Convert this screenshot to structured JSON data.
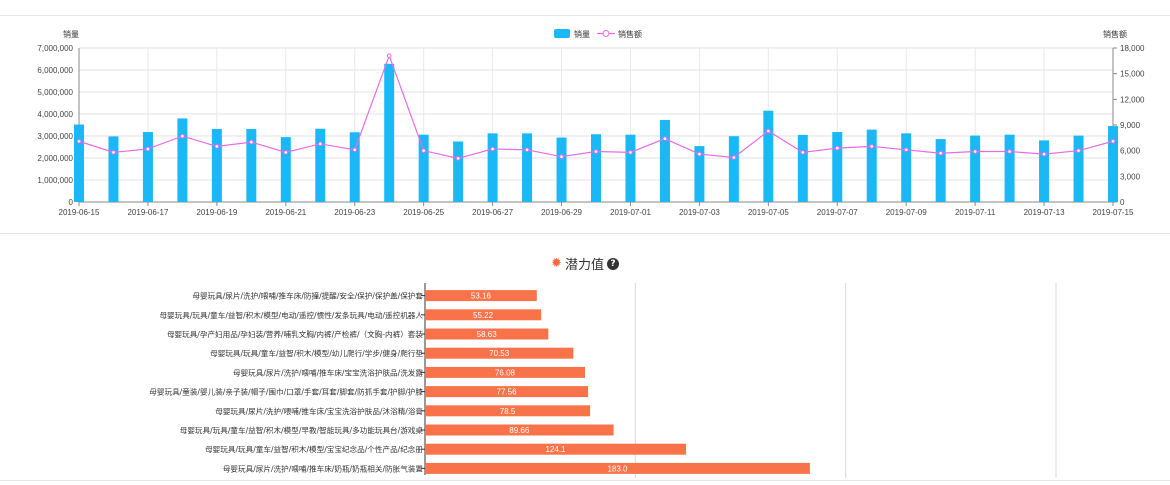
{
  "chart_data": [
    {
      "type": "bar+line",
      "ylabel_left": "销量",
      "ylabel_right": "销售额",
      "legend_position": "top-center",
      "ylim_left": [
        0,
        7000000
      ],
      "ylim_right": [
        0,
        18000
      ],
      "yticks_left": [
        "0",
        "1,000,000",
        "2,000,000",
        "3,000,000",
        "4,000,000",
        "5,000,000",
        "6,000,000",
        "7,000,000"
      ],
      "yticks_right": [
        "0",
        "3,000",
        "6,000",
        "9,000",
        "12,000",
        "15,000",
        "18,000"
      ],
      "x": [
        "2019-06-15",
        "2019-06-16",
        "2019-06-17",
        "2019-06-18",
        "2019-06-19",
        "2019-06-20",
        "2019-06-21",
        "2019-06-22",
        "2019-06-23",
        "2019-06-24",
        "2019-06-25",
        "2019-06-26",
        "2019-06-27",
        "2019-06-28",
        "2019-06-29",
        "2019-06-30",
        "2019-07-01",
        "2019-07-02",
        "2019-07-03",
        "2019-07-04",
        "2019-07-05",
        "2019-07-06",
        "2019-07-07",
        "2019-07-08",
        "2019-07-09",
        "2019-07-10",
        "2019-07-11",
        "2019-07-12",
        "2019-07-13",
        "2019-07-14",
        "2019-07-15"
      ],
      "xtick_labels": [
        "2019-06-15",
        "2019-06-17",
        "2019-06-19",
        "2019-06-21",
        "2019-06-23",
        "2019-06-25",
        "2019-06-27",
        "2019-06-29",
        "2019-07-01",
        "2019-07-03",
        "2019-07-05",
        "2019-07-07",
        "2019-07-09",
        "2019-07-11",
        "2019-07-13",
        "2019-07-15"
      ],
      "series": [
        {
          "name": "销量",
          "type": "bar",
          "axis": "left",
          "color": "#1ab8f5",
          "values": [
            3520000,
            2980000,
            3180000,
            3800000,
            3320000,
            3320000,
            2950000,
            3330000,
            3170000,
            6280000,
            3060000,
            2750000,
            3120000,
            3120000,
            2930000,
            3080000,
            3060000,
            3730000,
            2540000,
            2990000,
            4150000,
            3050000,
            3180000,
            3290000,
            3120000,
            2860000,
            3020000,
            3060000,
            2800000,
            3020000,
            3450000
          ]
        },
        {
          "name": "销售额",
          "type": "line",
          "axis": "right",
          "color": "#e86ce8",
          "values": [
            7100,
            5800,
            6200,
            7700,
            6500,
            7000,
            5800,
            6800,
            6100,
            17100,
            6000,
            5100,
            6200,
            6100,
            5300,
            5900,
            5800,
            7400,
            5600,
            5200,
            8300,
            5800,
            6300,
            6500,
            6100,
            5700,
            5900,
            5900,
            5600,
            6000,
            7100
          ]
        }
      ]
    },
    {
      "type": "bar",
      "orientation": "horizontal",
      "title": "潜力值",
      "xlim": [
        0,
        300
      ],
      "color": "#f8734a",
      "categories": [
        "母婴玩具/尿片/洗护/喂哺/推车床/防撞/提醒/安全/保护/保护盖/保护套",
        "母婴玩具/玩具/童车/益智/积木/模型/电动/遥控/惯性/发条玩具/电动/遥控机器人",
        "母婴玩具/孕产妇用品/孕妇装/营养/哺乳文胸/内裤/产检裤/（文胸-内裤）套装",
        "母婴玩具/玩具/童车/益智/积木/模型/幼儿爬行/学步/健身/爬行垫",
        "母婴玩具/尿片/洗护/喂哺/推车床/宝宝洗浴护肤品/洗发露",
        "母婴玩具/童装/婴儿装/亲子装/帽子/围巾/口罩/手套/耳套/脚套/防抓手套/护脚/护膝",
        "母婴玩具/尿片/洗护/喂哺/推车床/宝宝洗浴护肤品/沐浴精/浴膏",
        "母婴玩具/玩具/童车/益智/积木/模型/早教/智能玩具/多功能玩具台/游戏桌",
        "母婴玩具/玩具/童车/益智/积木/模型/宝宝纪念品/个性产品/纪念册",
        "母婴玩具/尿片/洗护/喂哺/推车床/奶瓶/奶瓶相关/防胀气装置"
      ],
      "values": [
        53.16,
        55.22,
        58.63,
        70.53,
        76.08,
        77.56,
        78.5,
        89.66,
        124.1,
        183.0
      ],
      "value_labels": [
        "53.16",
        "55.22",
        "58.63",
        "70.53",
        "76.08",
        "77.56",
        "78.5",
        "89.66",
        "124.1",
        "183.0"
      ]
    }
  ]
}
